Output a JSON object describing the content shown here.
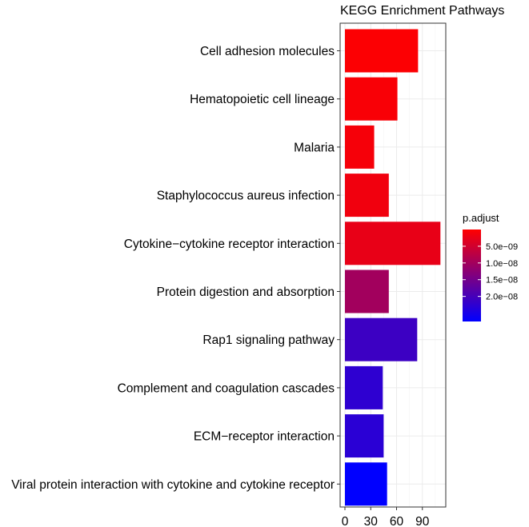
{
  "chart_data": {
    "type": "bar",
    "orientation": "horizontal",
    "title": "KEGG Enrichment Pathways",
    "xlabel": "",
    "ylabel": "",
    "xlim": [
      0,
      114
    ],
    "x_ticks": [
      0,
      30,
      60,
      90
    ],
    "grid": true,
    "categories": [
      "Cell adhesion molecules",
      "Hematopoietic cell lineage",
      "Malaria",
      "Staphylococcus aureus infection",
      "Cytokine−cytokine receptor interaction",
      "Protein digestion and absorption",
      "Rap1 signaling pathway",
      "Complement and coagulation cascades",
      "ECM−receptor interaction",
      "Viral protein interaction with cytokine and cytokine receptor"
    ],
    "values": [
      85,
      61,
      34,
      51,
      111,
      51,
      84,
      44,
      45,
      49
    ],
    "p_adjust": [
      3e-10,
      6e-10,
      1e-09,
      1.5e-09,
      2.5e-09,
      1e-08,
      2.1e-08,
      2.25e-08,
      2.3e-08,
      2.75e-08
    ],
    "color_scale": {
      "title": "p.adjust",
      "min": 0,
      "max": 2.75e-08,
      "low_color": "#ff0000",
      "high_color": "#0000ff",
      "ticks": [
        5e-09,
        1e-08,
        1.5e-08,
        2e-08
      ],
      "tick_labels": [
        "5.0e−09",
        "1.0e−08",
        "1.5e−08",
        "2.0e−08"
      ]
    },
    "legend_position": "right"
  }
}
